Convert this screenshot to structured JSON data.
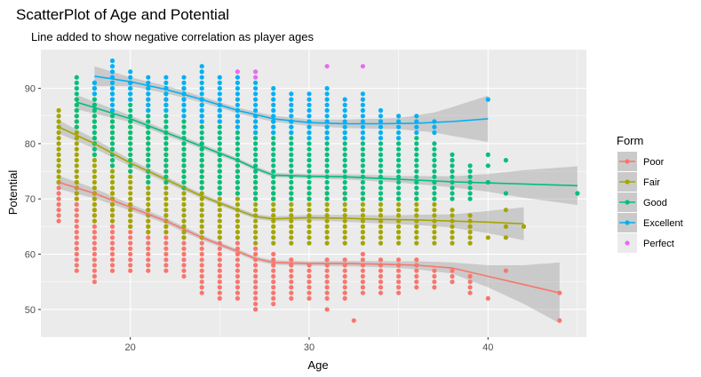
{
  "chart_data": {
    "type": "scatter",
    "title": "ScatterPlot of Age and Potential",
    "subtitle": "Line added to show negative correlation as player ages",
    "xlabel": "Age",
    "ylabel": "Potential",
    "xlim": [
      15,
      45.5
    ],
    "ylim": [
      45,
      97
    ],
    "x_ticks": [
      20,
      30,
      40
    ],
    "y_ticks": [
      50,
      60,
      70,
      80,
      90
    ],
    "grid": true,
    "background": "#ebebeb",
    "legend": {
      "title": "Form",
      "position": "right",
      "entries": [
        "Poor",
        "Fair",
        "Good",
        "Excellent",
        "Perfect"
      ]
    },
    "series": [
      {
        "name": "Poor",
        "color": "#f8766d",
        "columns": [
          [
            16,
            66,
            73
          ],
          [
            17,
            57,
            73
          ],
          [
            18,
            55,
            71
          ],
          [
            19,
            57,
            71
          ],
          [
            20,
            57,
            69
          ],
          [
            21,
            57,
            68
          ],
          [
            22,
            57,
            67
          ],
          [
            23,
            56,
            66
          ],
          [
            24,
            53,
            64
          ],
          [
            25,
            52,
            63
          ],
          [
            26,
            52,
            62
          ],
          [
            27,
            50,
            61
          ],
          [
            28,
            51,
            60
          ],
          [
            29,
            52,
            59
          ],
          [
            30,
            52,
            58
          ],
          [
            31,
            52,
            59
          ],
          [
            32,
            52,
            59
          ],
          [
            33,
            53,
            60
          ],
          [
            34,
            53,
            59
          ],
          [
            35,
            53,
            59
          ],
          [
            36,
            54,
            59
          ],
          [
            37,
            54,
            57
          ],
          [
            38,
            55,
            57
          ],
          [
            39,
            54,
            56
          ]
        ],
        "extra_points": [
          [
            27,
            50
          ],
          [
            31,
            50
          ],
          [
            32.5,
            48
          ],
          [
            40,
            52
          ],
          [
            41,
            57
          ],
          [
            44,
            53
          ],
          [
            44,
            48
          ],
          [
            39,
            53
          ]
        ],
        "trend": [
          [
            16,
            73
          ],
          [
            18,
            71
          ],
          [
            20,
            68.5
          ],
          [
            22,
            66
          ],
          [
            24,
            63
          ],
          [
            26,
            60.5
          ],
          [
            27,
            59.2
          ],
          [
            28,
            58.5
          ],
          [
            30,
            58.3
          ],
          [
            32,
            58.3
          ],
          [
            34,
            58.2
          ],
          [
            36,
            58
          ],
          [
            38,
            57.5
          ],
          [
            40,
            56
          ],
          [
            42,
            54.5
          ],
          [
            44,
            53
          ]
        ],
        "band": [
          [
            16,
            1.2
          ],
          [
            20,
            0.6
          ],
          [
            25,
            0.4
          ],
          [
            30,
            0.4
          ],
          [
            35,
            0.6
          ],
          [
            38,
            1
          ],
          [
            40,
            2
          ],
          [
            42,
            3.5
          ],
          [
            44,
            5.5
          ]
        ]
      },
      {
        "name": "Fair",
        "color": "#a3a500",
        "columns": [
          [
            16,
            73,
            86
          ],
          [
            17,
            70,
            88
          ],
          [
            18,
            66,
            87
          ],
          [
            19,
            66,
            85
          ],
          [
            20,
            65,
            84
          ],
          [
            21,
            64,
            83
          ],
          [
            22,
            64,
            82
          ],
          [
            23,
            63,
            81
          ],
          [
            24,
            63,
            80
          ],
          [
            25,
            63,
            78
          ],
          [
            26,
            63,
            77
          ],
          [
            27,
            62,
            75
          ],
          [
            28,
            62,
            73
          ],
          [
            29,
            62,
            72
          ],
          [
            30,
            62,
            72
          ],
          [
            31,
            62,
            71
          ],
          [
            32,
            62,
            71
          ],
          [
            33,
            62,
            71
          ],
          [
            34,
            62,
            70
          ],
          [
            35,
            62,
            70
          ],
          [
            36,
            62,
            70
          ],
          [
            37,
            62,
            70
          ],
          [
            38,
            62,
            68
          ],
          [
            39,
            62,
            67
          ]
        ],
        "extra_points": [
          [
            40,
            63
          ],
          [
            41,
            63
          ],
          [
            41,
            65
          ],
          [
            41,
            68
          ],
          [
            42,
            65
          ]
        ],
        "trend": [
          [
            16,
            83
          ],
          [
            18,
            80
          ],
          [
            20,
            76.5
          ],
          [
            22,
            73.5
          ],
          [
            24,
            70.5
          ],
          [
            26,
            68
          ],
          [
            27,
            66.8
          ],
          [
            28,
            66.4
          ],
          [
            30,
            66.6
          ],
          [
            32,
            66.5
          ],
          [
            34,
            66.3
          ],
          [
            36,
            66.2
          ],
          [
            38,
            66
          ],
          [
            40,
            65.8
          ],
          [
            42,
            65.5
          ]
        ],
        "band": [
          [
            16,
            1.2
          ],
          [
            20,
            0.6
          ],
          [
            25,
            0.4
          ],
          [
            30,
            0.5
          ],
          [
            35,
            0.8
          ],
          [
            38,
            1.2
          ],
          [
            40,
            2
          ],
          [
            42,
            3
          ]
        ]
      },
      {
        "name": "Good",
        "color": "#00bf7d",
        "columns": [
          [
            17,
            83,
            92
          ],
          [
            18,
            78,
            91
          ],
          [
            19,
            76,
            91
          ],
          [
            20,
            75,
            91
          ],
          [
            21,
            73,
            90
          ],
          [
            22,
            73,
            90
          ],
          [
            23,
            72,
            90
          ],
          [
            24,
            72,
            88
          ],
          [
            25,
            71,
            87
          ],
          [
            26,
            71,
            86
          ],
          [
            27,
            70,
            85
          ],
          [
            28,
            70,
            84
          ],
          [
            29,
            70,
            84
          ],
          [
            30,
            70,
            83
          ],
          [
            31,
            70,
            83
          ],
          [
            32,
            70,
            82
          ],
          [
            33,
            70,
            82
          ],
          [
            34,
            70,
            81
          ],
          [
            35,
            70,
            81
          ],
          [
            36,
            70,
            81
          ],
          [
            37,
            70,
            80
          ],
          [
            38,
            70,
            78
          ],
          [
            39,
            70,
            76
          ]
        ],
        "extra_points": [
          [
            40,
            73
          ],
          [
            40,
            76
          ],
          [
            40,
            78
          ],
          [
            41,
            77
          ],
          [
            41,
            71
          ],
          [
            45,
            71
          ]
        ],
        "trend": [
          [
            17,
            87.5
          ],
          [
            18,
            86.5
          ],
          [
            20,
            84.5
          ],
          [
            22,
            82
          ],
          [
            24,
            79.5
          ],
          [
            26,
            77
          ],
          [
            27,
            75.5
          ],
          [
            28,
            74.3
          ],
          [
            30,
            74.1
          ],
          [
            32,
            74
          ],
          [
            34,
            73.7
          ],
          [
            36,
            73.4
          ],
          [
            38,
            73.1
          ],
          [
            40,
            72.9
          ],
          [
            42,
            72.7
          ],
          [
            44,
            72.5
          ],
          [
            45,
            72.4
          ]
        ],
        "band": [
          [
            17,
            1.3
          ],
          [
            20,
            0.6
          ],
          [
            25,
            0.4
          ],
          [
            30,
            0.4
          ],
          [
            35,
            0.6
          ],
          [
            38,
            1
          ],
          [
            40,
            1.6
          ],
          [
            42,
            2.5
          ],
          [
            45,
            3.5
          ]
        ]
      },
      {
        "name": "Excellent",
        "color": "#00b0f6",
        "columns": [
          [
            18,
            89,
            91
          ],
          [
            19,
            86,
            95
          ],
          [
            20,
            88,
            93
          ],
          [
            21,
            86,
            92
          ],
          [
            22,
            86,
            92
          ],
          [
            23,
            85,
            92
          ],
          [
            24,
            84,
            94
          ],
          [
            25,
            84,
            92
          ],
          [
            26,
            83,
            92
          ],
          [
            27,
            82,
            91
          ],
          [
            28,
            82,
            90
          ],
          [
            29,
            82,
            89
          ],
          [
            30,
            81,
            89
          ],
          [
            31,
            81,
            90
          ],
          [
            32,
            81,
            88
          ],
          [
            33,
            81,
            89
          ],
          [
            34,
            81,
            86
          ],
          [
            35,
            81,
            85
          ],
          [
            36,
            82,
            85
          ],
          [
            37,
            82,
            84
          ]
        ],
        "extra_points": [
          [
            40,
            88
          ]
        ],
        "trend": [
          [
            18,
            92.2
          ],
          [
            20,
            91.2
          ],
          [
            22,
            89.8
          ],
          [
            24,
            88
          ],
          [
            26,
            86
          ],
          [
            28,
            84.5
          ],
          [
            30,
            83.8
          ],
          [
            32,
            83.6
          ],
          [
            34,
            83.6
          ],
          [
            36,
            83.7
          ],
          [
            38,
            84
          ],
          [
            40,
            84.5
          ]
        ],
        "band": [
          [
            18,
            1.8
          ],
          [
            20,
            0.8
          ],
          [
            25,
            0.5
          ],
          [
            30,
            0.6
          ],
          [
            35,
            1
          ],
          [
            37,
            1.8
          ],
          [
            38,
            2.6
          ],
          [
            40,
            4.2
          ]
        ]
      },
      {
        "name": "Perfect",
        "color": "#e76bf3",
        "columns": [],
        "extra_points": [
          [
            26,
            93
          ],
          [
            27,
            93
          ],
          [
            27,
            92
          ],
          [
            31,
            94
          ],
          [
            33,
            94
          ]
        ],
        "trend": [],
        "band": []
      }
    ]
  }
}
